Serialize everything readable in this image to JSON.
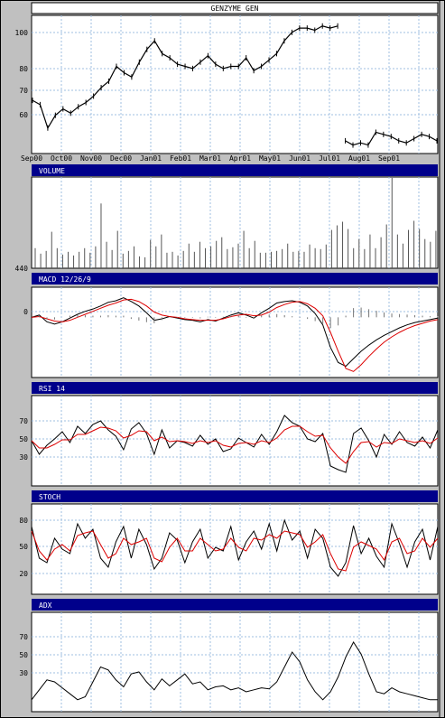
{
  "chart_data": [
    {
      "type": "line",
      "title": "GENZYME GEN",
      "y_ticks": [
        "100",
        "80",
        "70",
        "60"
      ],
      "x_ticks": [
        "Sep00",
        "Oct00",
        "Nov00",
        "Dec00",
        "Jan01",
        "Feb01",
        "Mar01",
        "Apr01",
        "May01",
        "Jun01",
        "Jul01",
        "Aug01",
        "Sep01"
      ],
      "series": [
        {
          "values": [
            70,
            68,
            57,
            63,
            66,
            64,
            67,
            69,
            72,
            76,
            79,
            86,
            83,
            81,
            88,
            94,
            98,
            92,
            90,
            87,
            86,
            85,
            88,
            91,
            87,
            85,
            86,
            86,
            90,
            84,
            86,
            89,
            92,
            98,
            102,
            104,
            104,
            103,
            105,
            104,
            105,
            51,
            49,
            50,
            49,
            55,
            54,
            53,
            51,
            50,
            52,
            54,
            53,
            51
          ]
        }
      ]
    },
    {
      "type": "bar",
      "title": "VOLUME",
      "y_ticks": [
        "440"
      ],
      "series": [
        {
          "values": [
            22,
            16,
            19,
            40,
            22,
            15,
            18,
            14,
            18,
            22,
            17,
            24,
            71,
            29,
            20,
            41,
            16,
            19,
            24,
            13,
            12,
            31,
            24,
            37,
            17,
            18,
            14,
            19,
            27,
            18,
            29,
            22,
            24,
            30,
            34,
            21,
            23,
            27,
            41,
            22,
            30,
            17,
            17,
            18,
            19,
            21,
            27,
            18,
            19,
            18,
            26,
            22,
            21,
            26,
            42,
            47,
            51,
            43,
            22,
            32,
            21,
            37,
            22,
            34,
            48,
            99,
            37,
            27,
            42,
            52,
            43,
            32,
            29,
            41
          ]
        }
      ]
    },
    {
      "type": "line",
      "title": "MACD 12/26/9",
      "y_ticks": [
        "0"
      ],
      "series": [
        {
          "values": [
            0,
            0.3,
            -0.6,
            -0.9,
            -0.6,
            -0.1,
            0.4,
            0.8,
            1.1,
            1.5,
            2,
            2.2,
            2.6,
            2.1,
            1.5,
            0.6,
            -0.4,
            -0.2,
            0.1,
            -0.1,
            -0.3,
            -0.4,
            -0.6,
            -0.3,
            -0.5,
            -0.1,
            0.3,
            0.6,
            0.3,
            -0.1,
            0.6,
            1.2,
            1.9,
            2.1,
            2.2,
            2.0,
            1.5,
            0.5,
            -1.0,
            -4.0,
            -6.0,
            -6.5,
            -5.5,
            -4.5,
            -3.7,
            -3.0,
            -2.4,
            -1.9,
            -1.4,
            -1.0,
            -0.7,
            -0.5,
            -0.3,
            -0.1
          ]
        },
        {
          "values": [
            0,
            0.1,
            -0.2,
            -0.5,
            -0.6,
            -0.4,
            0,
            0.4,
            0.8,
            1.2,
            1.6,
            1.9,
            2.3,
            2.4,
            2.1,
            1.5,
            0.7,
            0.3,
            0.1,
            0,
            -0.2,
            -0.3,
            -0.4,
            -0.4,
            -0.4,
            -0.2,
            0.1,
            0.3,
            0.4,
            0.2,
            0.3,
            0.7,
            1.3,
            1.7,
            2.0,
            2.1,
            1.8,
            1.2,
            0.2,
            -2.0,
            -4.5,
            -6.8,
            -7.2,
            -6.3,
            -5.2,
            -4.2,
            -3.3,
            -2.6,
            -2.0,
            -1.5,
            -1.1,
            -0.8,
            -0.5,
            -0.3
          ]
        }
      ]
    },
    {
      "type": "line",
      "title": "RSI 14",
      "y_ticks": [
        "70",
        "50",
        "30"
      ],
      "series": [
        {
          "values": [
            50,
            35,
            45,
            52,
            60,
            48,
            66,
            58,
            68,
            72,
            62,
            55,
            40,
            63,
            70,
            58,
            35,
            62,
            42,
            50,
            48,
            44,
            56,
            46,
            52,
            38,
            41,
            53,
            48,
            43,
            57,
            46,
            60,
            78,
            70,
            66,
            52,
            49,
            58,
            22,
            18,
            15,
            58,
            64,
            50,
            32,
            57,
            46,
            60,
            48,
            44,
            54,
            42,
            62
          ]
        },
        {
          "values": [
            50,
            42,
            42,
            46,
            51,
            51,
            57,
            57,
            61,
            65,
            64,
            61,
            53,
            56,
            61,
            60,
            50,
            54,
            49,
            50,
            49,
            47,
            50,
            48,
            50,
            45,
            43,
            47,
            48,
            46,
            50,
            48,
            53,
            62,
            66,
            66,
            60,
            55,
            56,
            42,
            32,
            25,
            38,
            48,
            49,
            43,
            48,
            47,
            52,
            50,
            48,
            50,
            47,
            53
          ]
        }
      ]
    },
    {
      "type": "line",
      "title": "STOCH",
      "y_ticks": [
        "80",
        "50",
        "20"
      ],
      "series": [
        {
          "values": [
            75,
            40,
            35,
            62,
            50,
            45,
            78,
            62,
            72,
            40,
            30,
            58,
            75,
            40,
            72,
            55,
            28,
            40,
            68,
            60,
            35,
            58,
            72,
            40,
            52,
            48,
            75,
            38,
            58,
            70,
            50,
            78,
            48,
            82,
            60,
            70,
            40,
            72,
            62,
            30,
            20,
            35,
            76,
            45,
            62,
            42,
            30,
            78,
            56,
            30,
            58,
            72,
            38,
            75
          ]
        },
        {
          "values": [
            70,
            48,
            38,
            50,
            55,
            48,
            65,
            68,
            70,
            55,
            40,
            45,
            62,
            55,
            58,
            62,
            40,
            36,
            52,
            62,
            48,
            48,
            62,
            55,
            48,
            50,
            62,
            52,
            48,
            62,
            60,
            66,
            62,
            70,
            68,
            66,
            52,
            58,
            66,
            45,
            28,
            26,
            52,
            58,
            54,
            50,
            38,
            58,
            62,
            45,
            48,
            62,
            52,
            62
          ]
        }
      ]
    },
    {
      "type": "line",
      "title": "ADX",
      "y_ticks": [
        "70",
        "50",
        "30"
      ],
      "series": [
        {
          "values": [
            12,
            22,
            32,
            30,
            24,
            18,
            12,
            15,
            30,
            45,
            42,
            32,
            25,
            38,
            40,
            30,
            22,
            33,
            26,
            32,
            38,
            28,
            30,
            22,
            25,
            26,
            22,
            24,
            20,
            22,
            24,
            23,
            30,
            45,
            60,
            50,
            32,
            20,
            12,
            20,
            35,
            55,
            70,
            58,
            38,
            20,
            18,
            24,
            20,
            18,
            16,
            14,
            12,
            12
          ]
        }
      ]
    }
  ]
}
